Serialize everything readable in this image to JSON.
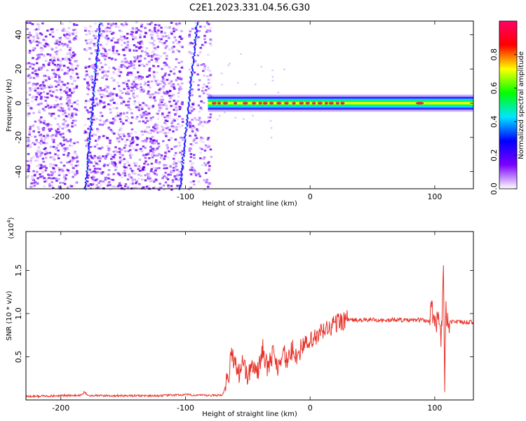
{
  "title": "C2E1.2023.331.04.56.G30",
  "chart_data": [
    {
      "type": "heatmap",
      "xlabel": "Height of straight line (km)",
      "ylabel": "Frequency (Hz)",
      "xlim": [
        -228,
        131
      ],
      "ylim": [
        -50,
        48
      ],
      "xticks": [
        -200,
        -100,
        0,
        100
      ],
      "xtick_labels": [
        "-200",
        "-100",
        "0",
        "100"
      ],
      "yticks": [
        -40,
        -20,
        0,
        20,
        40
      ],
      "ytick_labels": [
        "-40",
        "-20",
        "0",
        "20",
        "40"
      ],
      "colorbar": {
        "label": "Normalized spectral amplitude",
        "range": [
          0,
          1
        ],
        "ticks": [
          0,
          0.2,
          0.4,
          0.6,
          0.8
        ],
        "tick_labels": [
          "0.0",
          "0.2",
          "0.4",
          "0.6",
          "0.8"
        ],
        "colors": [
          "#ffffff",
          "#7b00ff",
          "#0000ff",
          "#00e5ff",
          "#00ff00",
          "#ffff00",
          "#ff0000",
          "#ff0066"
        ]
      },
      "grid": false
    },
    {
      "type": "line",
      "xlabel": "Height of straight line (km)",
      "ylabel": "SNR (10 * v/v)",
      "y_multiplier_label": "(x10",
      "y_multiplier_exp": "4",
      "y_multiplier_close": ")",
      "xlim": [
        -228,
        131
      ],
      "ylim": [
        0,
        1.95
      ],
      "xticks": [
        -200,
        -100,
        0,
        100
      ],
      "xtick_labels": [
        "-200",
        "-100",
        "0",
        "100"
      ],
      "yticks": [
        0.5,
        1.0,
        1.5
      ],
      "ytick_labels": [
        "0.5",
        "1.0",
        "1.5"
      ],
      "series": [
        {
          "color": "#e8322a",
          "x": [
            -228,
            -200,
            -185,
            -181,
            -178,
            -150,
            -120,
            -100,
            -80,
            -70,
            -66,
            -63,
            -60,
            -57,
            -54,
            -50,
            -46,
            -42,
            -38,
            -34,
            -30,
            -26,
            -22,
            -18,
            -14,
            -10,
            -6,
            -2,
            2,
            6,
            10,
            14,
            18,
            22,
            26,
            30,
            40,
            50,
            60,
            70,
            80,
            90,
            95,
            98,
            101,
            103,
            105,
            107,
            108,
            109,
            110,
            112,
            115,
            120,
            125,
            131
          ],
          "y": [
            0.04,
            0.05,
            0.05,
            0.09,
            0.05,
            0.05,
            0.05,
            0.06,
            0.05,
            0.06,
            0.25,
            0.52,
            0.45,
            0.3,
            0.48,
            0.25,
            0.42,
            0.32,
            0.6,
            0.35,
            0.55,
            0.38,
            0.58,
            0.42,
            0.6,
            0.5,
            0.65,
            0.62,
            0.7,
            0.72,
            0.8,
            0.82,
            0.86,
            0.9,
            0.92,
            0.93,
            0.92,
            0.93,
            0.92,
            0.93,
            0.92,
            0.93,
            0.91,
            1.05,
            0.85,
            1.1,
            0.6,
            1.6,
            0.08,
            1.2,
            0.88,
            0.9,
            0.91,
            0.9,
            0.9,
            0.9
          ]
        }
      ],
      "grid": false
    }
  ]
}
